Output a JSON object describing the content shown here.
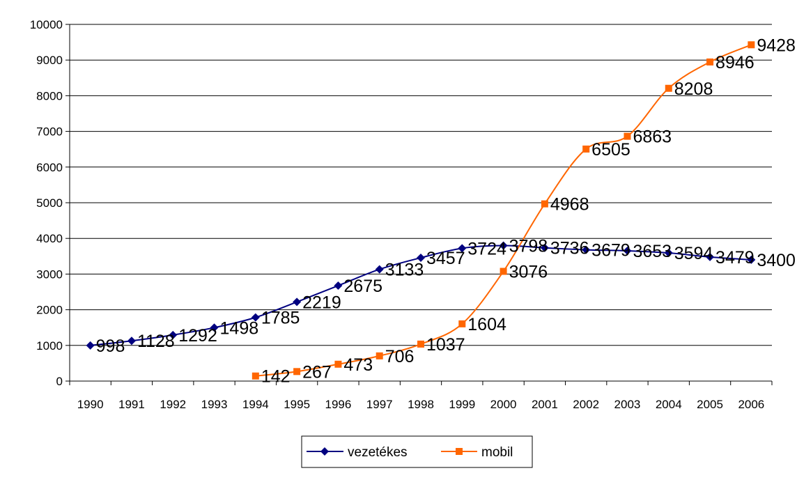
{
  "chart_data": {
    "type": "line",
    "title": "",
    "xlabel": "",
    "ylabel": "",
    "ylim": [
      0,
      10000
    ],
    "yticks": [
      0,
      1000,
      2000,
      3000,
      4000,
      5000,
      6000,
      7000,
      8000,
      9000,
      10000
    ],
    "grid": true,
    "legend_position": "bottom",
    "categories": [
      "1990",
      "1991",
      "1992",
      "1993",
      "1994",
      "1995",
      "1996",
      "1997",
      "1998",
      "1999",
      "2000",
      "2001",
      "2002",
      "2003",
      "2004",
      "2005",
      "2006"
    ],
    "series": [
      {
        "name": "vezetékes",
        "color": "#000080",
        "marker": "diamond",
        "values": [
          998,
          1128,
          1292,
          1498,
          1785,
          2219,
          2675,
          3133,
          3457,
          3724,
          3798,
          3736,
          3679,
          3653,
          3594,
          3479,
          3400
        ],
        "labels": [
          "998",
          "1128",
          "1292",
          "1498",
          "1785",
          "2219",
          "2675",
          "3133",
          "3457",
          "3724",
          "3798",
          "3736",
          "3679",
          "3653",
          "3594",
          "3479",
          "3400"
        ]
      },
      {
        "name": "mobil",
        "color": "#FF6600",
        "marker": "square",
        "values": [
          null,
          null,
          null,
          null,
          142,
          267,
          473,
          706,
          1037,
          1604,
          3076,
          4968,
          6505,
          6863,
          8208,
          8946,
          9428
        ],
        "labels": [
          null,
          null,
          null,
          null,
          "142",
          "267",
          "473",
          "706",
          "1037",
          "1604",
          "3076",
          "4968",
          "6505",
          "6863",
          "8208",
          "8946",
          "9428"
        ]
      }
    ]
  }
}
